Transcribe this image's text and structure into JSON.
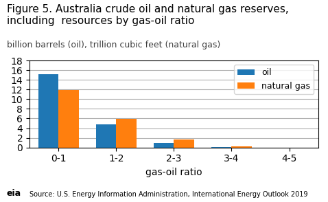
{
  "chart_data": {
    "type": "bar",
    "title": "Figure 5. Australia crude oil and natural gas reserves,\nincluding  resources by gas-oil ratio",
    "subtitle": "billion barrels (oil), trillion cubic feet (natural gas)",
    "x_label": "gas-oil ratio",
    "categories": [
      "0-1",
      "1-2",
      "2-3",
      "3-4",
      "4-5"
    ],
    "series": [
      {
        "name": "oil",
        "values": [
          15.2,
          4.8,
          0.9,
          0.05,
          0.0
        ]
      },
      {
        "name": "natural gas",
        "values": [
          11.9,
          5.9,
          1.6,
          0.25,
          0.0
        ]
      }
    ],
    "ylim": [
      0,
      18
    ],
    "yticks": [
      0,
      2,
      4,
      6,
      8,
      10,
      12,
      14,
      16,
      18
    ],
    "grid": true,
    "legend": "upper right",
    "annotations": [
      "Source: U.S. Energy Information Administration, International Energy Outlook 2019",
      "eia"
    ]
  }
}
